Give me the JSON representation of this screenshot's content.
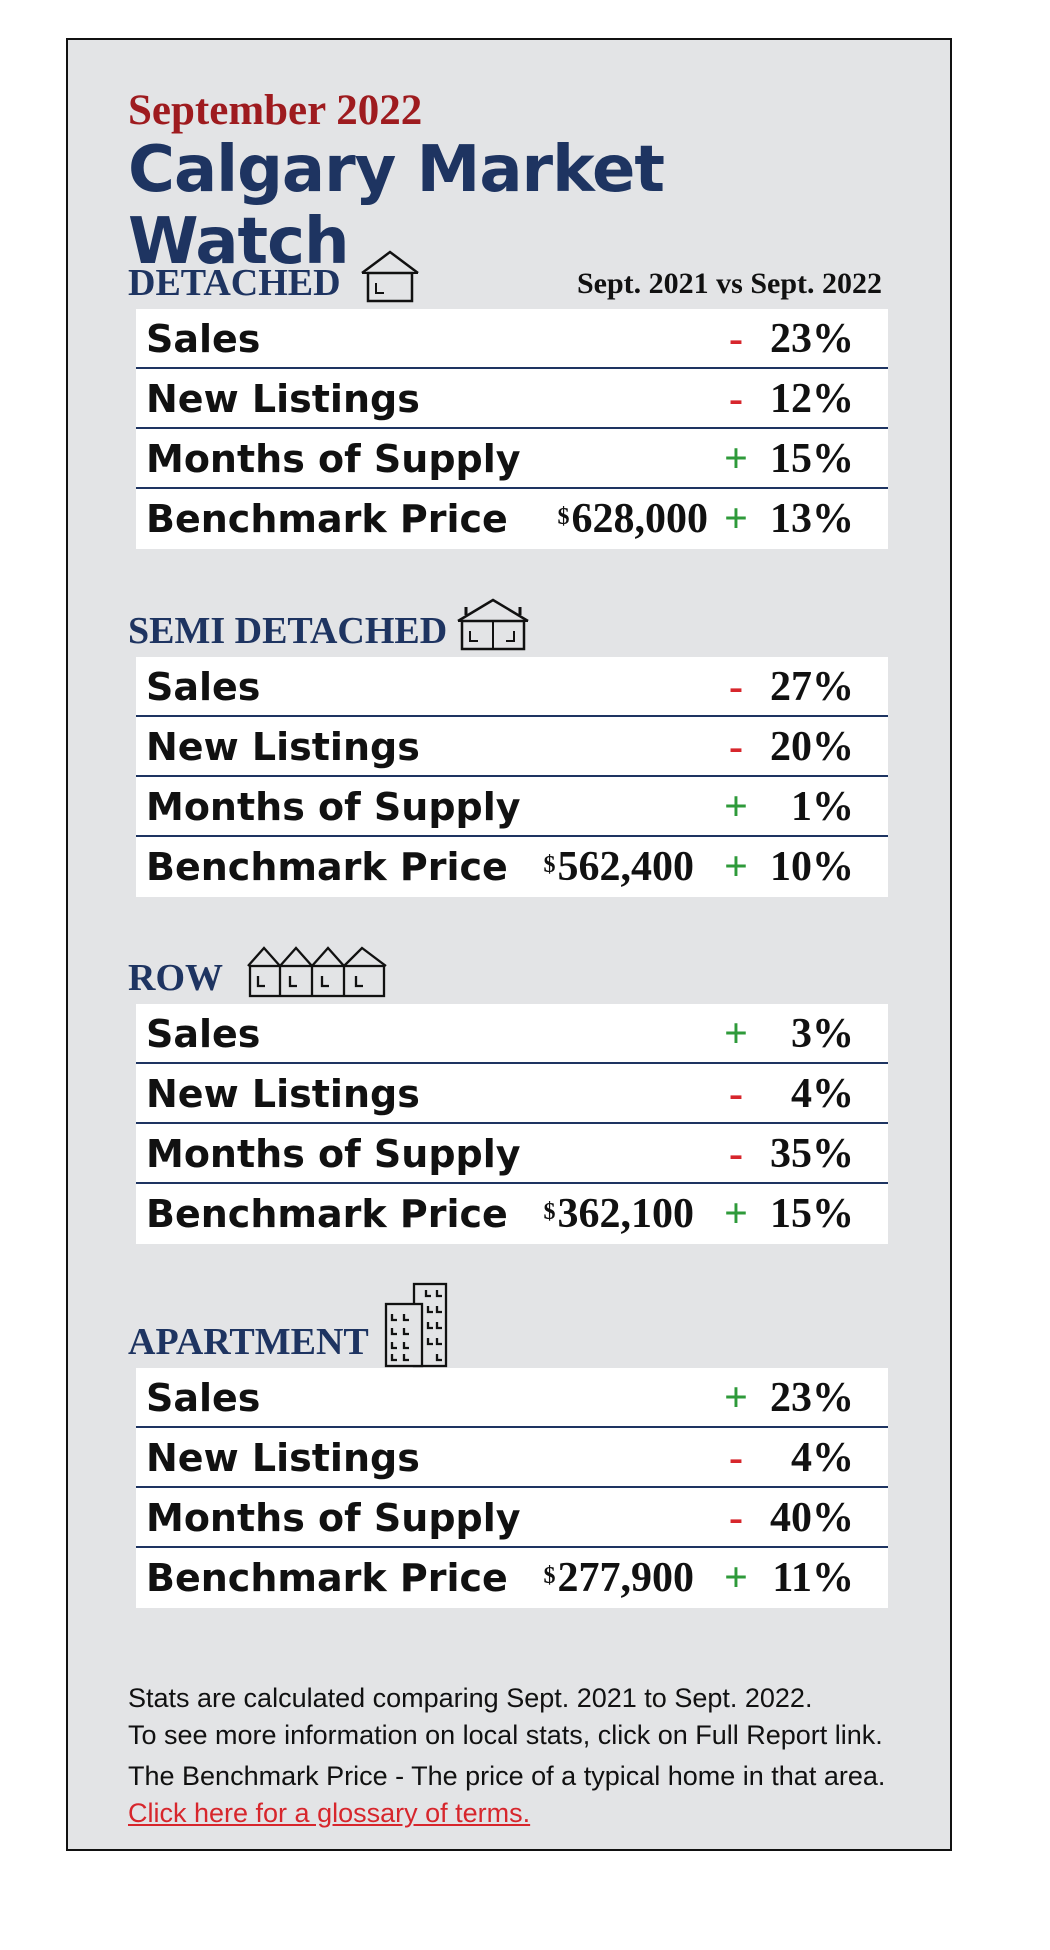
{
  "header": {
    "subtitle": "September 2022",
    "title": "Calgary Market Watch",
    "comparison": "Sept. 2021 vs Sept. 2022"
  },
  "colors": {
    "navy": "#1e3461",
    "red": "#9e1b1f",
    "up": "#2e9a3a",
    "down": "#d7262c"
  },
  "sections": [
    {
      "label": "DETACHED",
      "icon": "single-house-icon",
      "rows": [
        {
          "label": "Sales",
          "price": "",
          "sign": "-",
          "value": "23%"
        },
        {
          "label": "New Listings",
          "price": "",
          "sign": "-",
          "value": "12%"
        },
        {
          "label": "Months of Supply",
          "price": "",
          "sign": "+",
          "value": "15%"
        },
        {
          "label": "Benchmark Price",
          "price_symbol": "$",
          "price": "628,000",
          "sign": "+",
          "value": "13%"
        }
      ]
    },
    {
      "label": "SEMI DETACHED",
      "icon": "semi-detached-house-icon",
      "rows": [
        {
          "label": "Sales",
          "price": "",
          "sign": "-",
          "value": "27%"
        },
        {
          "label": "New Listings",
          "price": "",
          "sign": "-",
          "value": "20%"
        },
        {
          "label": "Months of Supply",
          "price": "",
          "sign": "+",
          "value": "1%"
        },
        {
          "label": "Benchmark Price",
          "price_symbol": "$",
          "price": "562,400",
          "sign": "+",
          "value": "10%"
        }
      ]
    },
    {
      "label": "ROW",
      "icon": "row-houses-icon",
      "rows": [
        {
          "label": "Sales",
          "price": "",
          "sign": "+",
          "value": "3%"
        },
        {
          "label": "New Listings",
          "price": "",
          "sign": "-",
          "value": "4%"
        },
        {
          "label": "Months of Supply",
          "price": "",
          "sign": "-",
          "value": "35%"
        },
        {
          "label": "Benchmark Price",
          "price_symbol": "$",
          "price": "362,100",
          "sign": "+",
          "value": "15%"
        }
      ]
    },
    {
      "label": "APARTMENT",
      "icon": "apartment-building-icon",
      "rows": [
        {
          "label": "Sales",
          "price": "",
          "sign": "+",
          "value": "23%"
        },
        {
          "label": "New Listings",
          "price": "",
          "sign": "-",
          "value": "4%"
        },
        {
          "label": "Months of Supply",
          "price": "",
          "sign": "-",
          "value": "40%"
        },
        {
          "label": "Benchmark Price",
          "price_symbol": "$",
          "price": "277,900",
          "sign": "+",
          "value": "11%"
        }
      ]
    }
  ],
  "notes": {
    "line1": "Stats are calculated comparing Sept. 2021 to Sept. 2022.",
    "line2": "To see more information on local stats, click on Full Report link.",
    "line3": "The Benchmark Price - The price of a typical home in that area.",
    "glossary_link": "Click here for a glossary of terms."
  }
}
